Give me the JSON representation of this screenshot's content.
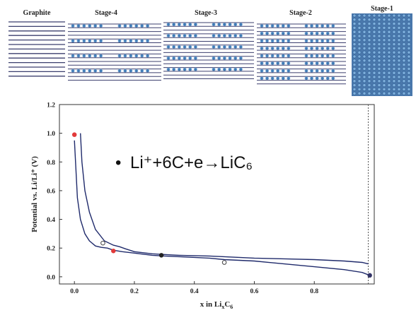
{
  "stages": {
    "titles": [
      "Graphite",
      "Stage-4",
      "Stage-3",
      "Stage-2",
      "Stage-1"
    ],
    "colors": {
      "layer": "#3b3f6e",
      "ion": "#3f7ab5",
      "ion_light": "#7fb0dc",
      "panel_bg": "#4a78ac"
    }
  },
  "equation": {
    "bullet": "•",
    "text": "Li⁺+6C+e→LiC₆"
  },
  "chart_data": {
    "type": "line",
    "xlabel": "x in LixC6",
    "xlabel_parts": {
      "main": "x in Li",
      "sub1": "x",
      "mid": "C",
      "sub2": "6"
    },
    "ylabel": "Potential vs. Li/Li⁺ (V)",
    "xlim": [
      -0.05,
      1.0
    ],
    "ylim": [
      -0.05,
      1.2
    ],
    "xticks": [
      "0.0",
      "0.2",
      "0.4",
      "0.6",
      "0.8"
    ],
    "yticks": [
      "0.0",
      "0.2",
      "0.4",
      "0.6",
      "0.8",
      "1.0",
      "1.2"
    ],
    "grid": false,
    "series": [
      {
        "role": "charge (upper)",
        "x": [
          0.02,
          0.025,
          0.035,
          0.05,
          0.07,
          0.1,
          0.13,
          0.15,
          0.17,
          0.2,
          0.26,
          0.3,
          0.35,
          0.45,
          0.5,
          0.6,
          0.7,
          0.8,
          0.9,
          0.96,
          0.98
        ],
        "y": [
          1.0,
          0.8,
          0.6,
          0.45,
          0.33,
          0.25,
          0.22,
          0.21,
          0.195,
          0.175,
          0.16,
          0.155,
          0.15,
          0.145,
          0.14,
          0.13,
          0.125,
          0.12,
          0.11,
          0.1,
          0.09
        ]
      },
      {
        "role": "discharge (lower)",
        "x": [
          0.0,
          0.005,
          0.01,
          0.02,
          0.035,
          0.05,
          0.07,
          0.09,
          0.11,
          0.13,
          0.16,
          0.2,
          0.26,
          0.3,
          0.35,
          0.45,
          0.5,
          0.6,
          0.7,
          0.8,
          0.9,
          0.96,
          0.985
        ],
        "y": [
          0.95,
          0.75,
          0.55,
          0.4,
          0.3,
          0.25,
          0.215,
          0.205,
          0.2,
          0.185,
          0.175,
          0.165,
          0.15,
          0.145,
          0.14,
          0.13,
          0.12,
          0.11,
          0.09,
          0.07,
          0.05,
          0.03,
          0.01
        ]
      }
    ],
    "markers": [
      {
        "x": 0.0,
        "y": 0.99,
        "fill": "#e23a3a",
        "stroke": "#e23a3a"
      },
      {
        "x": 0.095,
        "y": 0.235,
        "fill": "#ffffff",
        "stroke": "#333333"
      },
      {
        "x": 0.13,
        "y": 0.18,
        "fill": "#e23a3a",
        "stroke": "#e23a3a"
      },
      {
        "x": 0.29,
        "y": 0.15,
        "fill": "#222222",
        "stroke": "#222222"
      },
      {
        "x": 0.5,
        "y": 0.1,
        "fill": "#ffffff",
        "stroke": "#333333"
      },
      {
        "x": 0.985,
        "y": 0.01,
        "fill": "#333366",
        "stroke": "#333366"
      }
    ],
    "colors": {
      "line": "#1f2a6b",
      "vline": "#555555"
    }
  }
}
